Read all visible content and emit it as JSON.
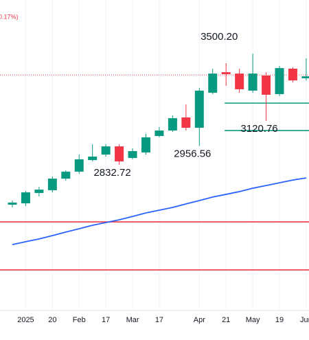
{
  "chart_data": {
    "type": "candlestick",
    "subtitle": "0.17%)",
    "categories": [
      null,
      "2025",
      null,
      "20",
      null,
      "Feb",
      null,
      "17",
      null,
      "Mar",
      null,
      "17",
      null,
      null,
      "Apr",
      null,
      "21",
      null,
      "May",
      null,
      "19",
      null,
      "Jun"
    ],
    "open": [
      2571,
      2580,
      2648,
      2666,
      2742,
      2788,
      2864,
      2900,
      2954,
      2878,
      2914,
      3022,
      3058,
      3144,
      3076,
      3306,
      3441,
      3432,
      3320,
      3419,
      3297,
      3464,
      3401
    ],
    "high": [
      2598,
      2661,
      2688,
      2756,
      2797,
      2900,
      2968,
      2968,
      2968,
      2941,
      3036,
      3081,
      3157,
      3229,
      3338,
      3464,
      3500.2,
      3464,
      3563,
      3441,
      3482,
      3473,
      3532
    ],
    "low": [
      2553,
      2562,
      2625,
      2652,
      2729,
      2774,
      2855,
      2887,
      2832.72,
      2869,
      2900,
      3013,
      3049,
      3058,
      2956.56,
      3297,
      3351,
      3306,
      3306,
      3120.76,
      3284,
      3374,
      3387
    ],
    "close": [
      2585,
      2652,
      2670,
      2742,
      2788,
      2869,
      2887,
      2954,
      2855,
      2923,
      3013,
      3058,
      3139,
      3076,
      3320,
      3432,
      3428,
      3329,
      3432,
      3293,
      3468,
      3387,
      3414
    ],
    "up_color": "#089981",
    "down_color": "#f23645",
    "ma": {
      "color": "#2962ff",
      "values": [
        2309,
        2328,
        2346,
        2368,
        2391,
        2413,
        2436,
        2454,
        2472,
        2494,
        2517,
        2535,
        2553,
        2576,
        2598,
        2621,
        2639,
        2657,
        2679,
        2697,
        2715,
        2733,
        2747
      ]
    },
    "levels": [
      {
        "value": 2458,
        "color": "#f23645"
      },
      {
        "value": 2143,
        "color": "#f23645"
      },
      {
        "value": 3238,
        "color": "#089981"
      },
      {
        "value": 3058,
        "color": "#089981"
      }
    ],
    "price_line": {
      "value": 3423,
      "color": "#f23645"
    },
    "annotations": [
      {
        "value": 3500.2,
        "label": "3500.20"
      },
      {
        "value": 2956.56,
        "label": "2956.56"
      },
      {
        "value": 2832.72,
        "label": "2832.72"
      },
      {
        "value": 3120.76,
        "label": "3120.76"
      }
    ],
    "ylim": [
      1863,
      3915
    ],
    "grid": true
  }
}
